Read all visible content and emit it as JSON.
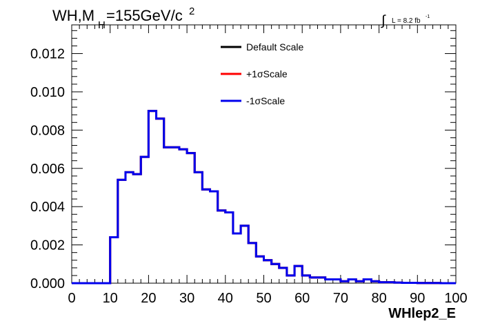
{
  "chart_data": {
    "type": "histogram-step",
    "title_main": "WH,M",
    "title_sub": "H",
    "title_rest": "=155GeV/c",
    "title_sup": "2",
    "lumi_sym": "∫",
    "lumi_text": "L = 8.2 fb",
    "lumi_sup": "-1",
    "xlabel": "WHlep2_E",
    "xlim": [
      0,
      100
    ],
    "ylim": [
      0,
      0.0135
    ],
    "xticks": [
      "0",
      "10",
      "20",
      "30",
      "40",
      "50",
      "60",
      "70",
      "80",
      "90",
      "100"
    ],
    "yticks": [
      "0.000",
      "0.002",
      "0.004",
      "0.006",
      "0.008",
      "0.010",
      "0.012"
    ],
    "bin_width": 2,
    "bins_x": [
      0,
      2,
      4,
      6,
      8,
      10,
      12,
      14,
      16,
      18,
      20,
      22,
      24,
      26,
      28,
      30,
      32,
      34,
      36,
      38,
      40,
      42,
      44,
      46,
      48,
      50,
      52,
      54,
      56,
      58,
      60,
      62,
      64,
      66,
      68,
      70,
      72,
      74,
      76,
      78,
      80,
      82,
      84,
      86,
      88,
      90,
      92,
      94,
      96,
      98
    ],
    "series": [
      {
        "name": "Default Scale",
        "color": "#000000",
        "values": [
          0,
          0,
          0,
          0,
          0,
          0.0024,
          0.0054,
          0.0058,
          0.0057,
          0.0066,
          0.009,
          0.0086,
          0.0071,
          0.0071,
          0.007,
          0.0068,
          0.0058,
          0.0049,
          0.0048,
          0.0038,
          0.0037,
          0.0026,
          0.003,
          0.0021,
          0.0014,
          0.0012,
          0.001,
          0.0008,
          0.0004,
          0.0009,
          0.0004,
          0.0003,
          0.0003,
          0.0002,
          0.0002,
          0.0001,
          0.0002,
          0.0001,
          0.0002,
          0.0001,
          5e-05,
          5e-05,
          3e-05,
          2e-05,
          2e-05,
          1e-05,
          1e-05,
          1e-05,
          0,
          0
        ]
      },
      {
        "name": "+1σScale",
        "color": "#ff0000",
        "values": [
          0,
          0,
          0,
          0,
          0,
          0.0024,
          0.0054,
          0.0058,
          0.0057,
          0.0066,
          0.009,
          0.0086,
          0.0071,
          0.0071,
          0.007,
          0.0068,
          0.0058,
          0.0049,
          0.0048,
          0.0038,
          0.0037,
          0.0026,
          0.003,
          0.0021,
          0.0014,
          0.0012,
          0.001,
          0.0008,
          0.0004,
          0.0009,
          0.0004,
          0.0003,
          0.0003,
          0.0002,
          0.0002,
          0.0001,
          0.0002,
          0.0001,
          0.0002,
          0.0001,
          5e-05,
          5e-05,
          3e-05,
          2e-05,
          2e-05,
          1e-05,
          1e-05,
          1e-05,
          0,
          0
        ]
      },
      {
        "name": "-1σScale",
        "color": "#0000ee",
        "values": [
          0,
          0,
          0,
          0,
          0,
          0.0024,
          0.0054,
          0.0058,
          0.0057,
          0.0066,
          0.009,
          0.0086,
          0.0071,
          0.0071,
          0.007,
          0.0068,
          0.0058,
          0.0049,
          0.0048,
          0.0038,
          0.0037,
          0.0026,
          0.003,
          0.0021,
          0.0014,
          0.0012,
          0.001,
          0.0008,
          0.0004,
          0.0009,
          0.0004,
          0.0003,
          0.0003,
          0.0002,
          0.0002,
          0.0001,
          0.0002,
          0.0001,
          0.0002,
          0.0001,
          5e-05,
          5e-05,
          3e-05,
          2e-05,
          2e-05,
          1e-05,
          1e-05,
          1e-05,
          0,
          0
        ]
      }
    ],
    "legend_position": "top-center",
    "grid": false
  }
}
